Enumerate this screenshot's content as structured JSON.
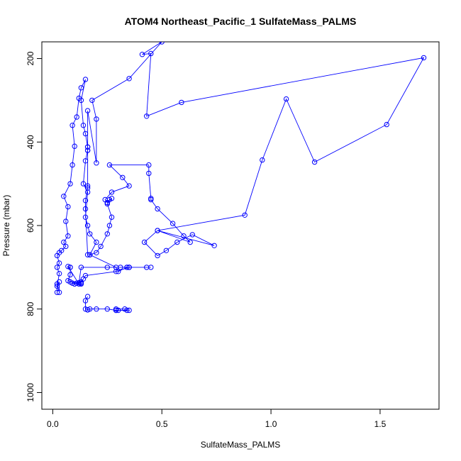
{
  "chart_data": {
    "type": "line",
    "title": "ATOM4 Northeast_Pacific_1 SulfateMass_PALMS",
    "xlabel": "SulfateMass_PALMS",
    "ylabel": "Pressure (mbar)",
    "xlim": [
      -0.05,
      1.77
    ],
    "ylim": [
      1040,
      160
    ],
    "y_reversed": true,
    "x_ticks": [
      0.0,
      0.5,
      1.0,
      1.5
    ],
    "x_tick_labels": [
      "0.0",
      "0.5",
      "1.0",
      "1.5"
    ],
    "y_ticks": [
      200,
      400,
      600,
      800,
      1000
    ],
    "y_tick_labels": [
      "200",
      "400",
      "600",
      "800",
      "1000"
    ],
    "grid": false,
    "legend": "none",
    "marker": "open-circle",
    "color": "#0000ff",
    "series": [
      {
        "x": [
          0.02,
          0.02,
          0.03,
          0.03,
          0.02,
          0.03,
          0.02,
          0.03,
          0.02,
          0.03,
          0.04,
          0.06,
          0.05,
          0.07,
          0.06,
          0.07,
          0.05,
          0.08,
          0.09,
          0.1,
          0.09,
          0.11,
          0.12,
          0.13,
          0.15,
          0.13,
          0.14,
          0.15,
          0.16,
          0.16,
          0.15,
          0.14,
          0.16,
          0.15,
          0.16,
          0.17,
          0.2,
          0.17,
          0.2,
          0.22,
          0.25,
          0.26,
          0.27,
          0.25,
          0.27,
          0.26,
          0.25,
          0.24,
          0.27,
          0.35,
          0.32,
          0.26,
          0.44,
          0.44,
          0.45,
          0.45,
          0.48,
          0.55,
          0.6,
          0.63,
          0.48,
          0.42,
          0.48,
          0.52,
          0.57,
          0.64,
          0.74,
          0.48,
          0.88,
          0.96,
          1.07,
          1.2,
          1.53,
          1.7,
          0.59,
          0.43,
          0.45,
          0.41,
          0.5,
          0.35,
          0.18,
          0.2,
          0.2,
          0.16,
          0.16,
          0.16,
          0.16,
          0.16,
          0.15,
          0.15,
          0.16,
          0.17,
          0.29,
          0.3,
          0.34,
          0.35,
          0.29,
          0.15,
          0.14,
          0.13,
          0.1,
          0.09,
          0.12,
          0.07,
          0.08,
          0.08,
          0.08,
          0.07,
          0.08,
          0.11,
          0.13,
          0.13,
          0.12,
          0.13,
          0.25,
          0.31,
          0.34,
          0.35,
          0.43,
          0.45,
          0.35
        ],
        "y": [
          760,
          740,
          760,
          735,
          745,
          715,
          700,
          690,
          672,
          665,
          660,
          650,
          640,
          625,
          590,
          555,
          530,
          500,
          455,
          410,
          360,
          340,
          295,
          270,
          250,
          300,
          360,
          380,
          412,
          420,
          445,
          500,
          520,
          580,
          600,
          620,
          640,
          670,
          665,
          650,
          620,
          600,
          580,
          548,
          535,
          538,
          545,
          538,
          520,
          505,
          485,
          455,
          455,
          475,
          535,
          538,
          560,
          595,
          625,
          640,
          612,
          640,
          672,
          660,
          640,
          622,
          648,
          612,
          575,
          443,
          297,
          448,
          358,
          198,
          305,
          338,
          188,
          190,
          160,
          248,
          300,
          345,
          450,
          325,
          420,
          412,
          505,
          510,
          540,
          560,
          670,
          670,
          700,
          710,
          700,
          700,
          710,
          720,
          728,
          735,
          740,
          738,
          740,
          698,
          700,
          700,
          718,
          732,
          735,
          738,
          740,
          738,
          737,
          700,
          700,
          700,
          700,
          700,
          700,
          700,
          700
        ]
      },
      {
        "x": [
          0.16,
          0.15,
          0.15,
          0.16,
          0.16,
          0.17,
          0.2,
          0.25,
          0.29,
          0.3,
          0.29,
          0.34,
          0.35,
          0.33,
          0.29
        ],
        "y": [
          770,
          780,
          800,
          802,
          802,
          800,
          800,
          800,
          803,
          803,
          803,
          803,
          803,
          800,
          800
        ]
      }
    ]
  }
}
